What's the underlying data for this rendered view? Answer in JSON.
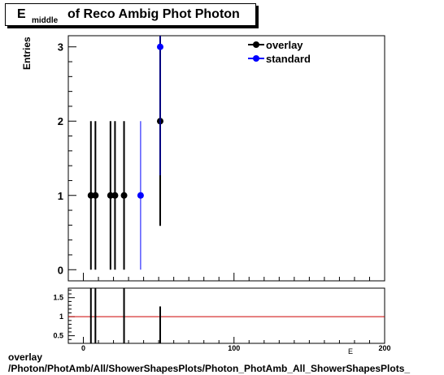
{
  "title": {
    "main": "E",
    "subscript": "middle",
    "rest": "of Reco Ambig Phot Photon"
  },
  "footer": {
    "line1": "overlay",
    "line2": "/Photon/PhotAmb/All/ShowerShapesPlots/Photon_PhotAmb_All_ShowerShapesPlots_"
  },
  "chart_data": [
    {
      "type": "scatter",
      "ylabel": "Entries",
      "xlabel": "E",
      "xlim": [
        -10,
        200
      ],
      "ylim": [
        -0.15,
        3.15
      ],
      "x_ticks": [
        0,
        100,
        200
      ],
      "y_ticks": [
        0,
        1,
        2,
        3
      ],
      "legend": {
        "position": "top-right",
        "entries": [
          "overlay",
          "standard"
        ]
      },
      "series": [
        {
          "name": "overlay",
          "color": "#000000",
          "points": [
            {
              "x": 5,
              "y": 1,
              "err": 1
            },
            {
              "x": 8,
              "y": 1,
              "err": 1
            },
            {
              "x": 18,
              "y": 1,
              "err": 1
            },
            {
              "x": 21,
              "y": 1,
              "err": 1
            },
            {
              "x": 27,
              "y": 1,
              "err": 1
            },
            {
              "x": 51,
              "y": 2,
              "err": 1.41
            }
          ]
        },
        {
          "name": "standard",
          "color": "#0000ff",
          "points": [
            {
              "x": 38,
              "y": 1,
              "err": 1
            },
            {
              "x": 51,
              "y": 3,
              "err": 1.73
            }
          ]
        }
      ]
    },
    {
      "type": "scatter",
      "xlim": [
        -10,
        200
      ],
      "ylim": [
        0.3,
        1.75
      ],
      "y_ticks": [
        0.5,
        1,
        1.5
      ],
      "x_ticks": [
        0,
        100,
        200
      ],
      "reference_line": {
        "y": 1,
        "color": "#cc0000"
      },
      "ratio_points": [
        {
          "x": 5,
          "y": 1.0,
          "err": 1.0
        },
        {
          "x": 8,
          "y": 1.0,
          "err": 1.0
        },
        {
          "x": 27,
          "y": 1.0,
          "err": 1.0
        },
        {
          "x": 51,
          "y": 0.67,
          "err": 0.6
        }
      ]
    }
  ]
}
